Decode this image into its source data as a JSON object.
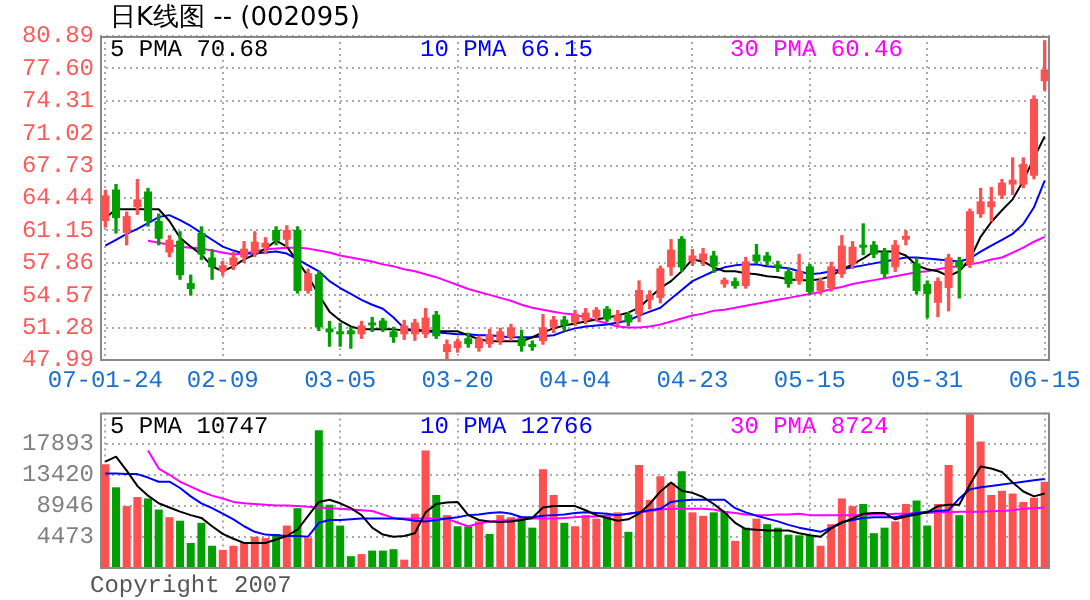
{
  "chart_data": [
    {
      "type": "candlestick",
      "title": "日K线图 -- (002095)",
      "categories": [
        "07-01-24",
        null,
        null,
        null,
        null,
        null,
        null,
        null,
        null,
        null,
        null,
        "02-09",
        null,
        null,
        null,
        null,
        null,
        null,
        null,
        null,
        null,
        null,
        "03-05",
        null,
        null,
        null,
        null,
        null,
        null,
        null,
        null,
        null,
        null,
        "03-20",
        null,
        null,
        null,
        null,
        null,
        null,
        null,
        null,
        null,
        null,
        "04-04",
        null,
        null,
        null,
        null,
        null,
        null,
        null,
        null,
        null,
        null,
        "04-23",
        null,
        null,
        null,
        null,
        null,
        null,
        null,
        null,
        null,
        null,
        "05-15",
        null,
        null,
        null,
        null,
        null,
        null,
        null,
        null,
        null,
        null,
        "05-31",
        null,
        null,
        null,
        null,
        null,
        null,
        null,
        null,
        null,
        null,
        "06-15"
      ],
      "ohlc": [
        [
          62.1,
          65.2,
          61.5,
          64.7
        ],
        [
          65.3,
          65.8,
          60.9,
          62.4
        ],
        [
          60.9,
          63.0,
          59.7,
          62.6
        ],
        [
          63.5,
          66.3,
          62.8,
          64.3
        ],
        [
          65.1,
          65.4,
          61.6,
          62.1
        ],
        [
          62.1,
          62.8,
          59.7,
          60.3
        ],
        [
          58.9,
          60.6,
          58.5,
          60.2
        ],
        [
          60.1,
          61.0,
          56.2,
          56.6
        ],
        [
          55.8,
          56.6,
          54.6,
          55.2
        ],
        [
          60.9,
          61.5,
          58.2,
          58.7
        ],
        [
          58.4,
          59.2,
          56.2,
          57.4
        ],
        [
          57.0,
          58.0,
          56.6,
          57.6
        ],
        [
          57.6,
          58.9,
          57.2,
          58.4
        ],
        [
          58.4,
          60.0,
          57.9,
          59.3
        ],
        [
          58.8,
          61.0,
          58.5,
          60.0
        ],
        [
          59.4,
          60.4,
          58.8,
          59.9
        ],
        [
          61.2,
          61.5,
          59.7,
          60.1
        ],
        [
          60.2,
          61.6,
          59.5,
          61.2
        ],
        [
          61.2,
          61.5,
          54.8,
          55.0
        ],
        [
          55.0,
          57.2,
          54.8,
          56.8
        ],
        [
          56.7,
          57.0,
          51.0,
          51.3
        ],
        [
          51.2,
          51.9,
          49.4,
          50.8
        ],
        [
          50.9,
          51.7,
          49.4,
          50.6
        ],
        [
          51.0,
          51.3,
          49.2,
          50.6
        ],
        [
          50.6,
          51.9,
          50.2,
          51.5
        ],
        [
          51.8,
          52.3,
          50.9,
          51.5
        ],
        [
          52.0,
          52.2,
          50.9,
          51.2
        ],
        [
          50.9,
          51.3,
          49.8,
          50.3
        ],
        [
          50.6,
          52.0,
          50.1,
          51.5
        ],
        [
          50.6,
          52.1,
          50.0,
          51.8
        ],
        [
          50.6,
          53.2,
          50.3,
          52.3
        ],
        [
          52.6,
          52.9,
          50.2,
          50.4
        ],
        [
          48.8,
          50.0,
          48.1,
          49.6
        ],
        [
          49.2,
          50.1,
          48.8,
          49.9
        ],
        [
          50.2,
          50.7,
          49.3,
          49.6
        ],
        [
          49.2,
          50.4,
          48.9,
          50.2
        ],
        [
          49.6,
          51.1,
          49.3,
          50.6
        ],
        [
          49.9,
          51.2,
          49.6,
          50.9
        ],
        [
          50.3,
          51.6,
          50.0,
          51.3
        ],
        [
          50.2,
          51.0,
          48.9,
          49.4
        ],
        [
          49.6,
          49.9,
          49.0,
          49.3
        ],
        [
          49.9,
          52.6,
          49.6,
          51.3
        ],
        [
          51.3,
          52.4,
          50.8,
          52.1
        ],
        [
          52.1,
          52.4,
          51.0,
          51.5
        ],
        [
          51.8,
          53.0,
          51.5,
          52.6
        ],
        [
          52.0,
          53.2,
          51.7,
          52.8
        ],
        [
          52.3,
          53.3,
          52.0,
          53.1
        ],
        [
          53.2,
          53.4,
          51.9,
          52.1
        ],
        [
          51.9,
          53.0,
          51.5,
          52.6
        ],
        [
          52.6,
          52.8,
          51.5,
          51.8
        ],
        [
          52.6,
          56.0,
          51.9,
          55.1
        ],
        [
          54.1,
          55.0,
          53.2,
          54.6
        ],
        [
          54.3,
          57.5,
          53.8,
          57.3
        ],
        [
          57.4,
          60.2,
          56.6,
          59.2
        ],
        [
          60.3,
          60.5,
          57.0,
          57.4
        ],
        [
          58.0,
          59.2,
          57.6,
          58.6
        ],
        [
          58.1,
          59.3,
          57.6,
          58.8
        ],
        [
          58.6,
          59.0,
          56.9,
          57.5
        ],
        [
          55.67,
          56.3,
          55.4,
          56.14
        ],
        [
          56.0,
          56.3,
          55.3,
          55.5
        ],
        [
          55.5,
          58.4,
          55.3,
          58.0
        ],
        [
          58.7,
          59.7,
          57.8,
          58.0
        ],
        [
          58.6,
          58.9,
          57.7,
          58.0
        ],
        [
          57.7,
          58.0,
          57.0,
          57.4
        ],
        [
          57.0,
          57.3,
          55.4,
          55.7
        ],
        [
          56.0,
          58.7,
          55.7,
          57.0
        ],
        [
          57.5,
          57.7,
          54.7,
          54.9
        ],
        [
          55.0,
          56.3,
          54.7,
          56.0
        ],
        [
          55.3,
          57.9,
          55.0,
          57.5
        ],
        [
          56.7,
          60.6,
          56.4,
          59.6
        ],
        [
          57.7,
          60.0,
          57.3,
          59.5
        ],
        [
          59.7,
          61.8,
          58.7,
          59.4
        ],
        [
          59.7,
          60.0,
          58.4,
          58.7
        ],
        [
          59.0,
          59.3,
          56.4,
          56.7
        ],
        [
          57.4,
          60.1,
          57.0,
          59.7
        ],
        [
          60.2,
          61.1,
          59.7,
          60.6
        ],
        [
          57.8,
          58.3,
          54.7,
          55.0
        ],
        [
          55.7,
          56.0,
          52.3,
          54.7
        ],
        [
          53.8,
          56.3,
          52.4,
          56.0
        ],
        [
          55.3,
          58.7,
          53.0,
          58.4
        ],
        [
          58.0,
          58.4,
          54.3,
          57.4
        ],
        [
          57.7,
          63.3,
          57.4,
          63.1
        ],
        [
          62.8,
          65.4,
          62.5,
          64.1
        ],
        [
          63.5,
          65.5,
          62.1,
          64.1
        ],
        [
          64.7,
          66.3,
          64.4,
          66.0
        ],
        [
          65.8,
          68.5,
          64.8,
          66.3
        ],
        [
          65.8,
          68.5,
          65.5,
          67.9
        ],
        [
          66.7,
          74.8,
          66.4,
          74.5
        ],
        [
          76.3,
          80.4,
          75.4,
          77.5
        ]
      ],
      "colors": [
        "#ff5050",
        "#00a000",
        "#ff5050",
        "#ff5050",
        "#00a000",
        "#00a000",
        "#ff5050",
        "#00a000",
        "#00a000",
        "#00a000",
        "#00a000",
        "#ff5050",
        "#ff5050",
        "#ff5050",
        "#ff5050",
        "#ff5050",
        "#00a000",
        "#ff5050",
        "#00a000",
        "#ff5050",
        "#00a000",
        "#00a000",
        "#00a000",
        "#00a000",
        "#ff5050",
        "#00a000",
        "#00a000",
        "#00a000",
        "#ff5050",
        "#ff5050",
        "#ff5050",
        "#00a000",
        "#ff5050",
        "#ff5050",
        "#00a000",
        "#ff5050",
        "#ff5050",
        "#ff5050",
        "#ff5050",
        "#00a000",
        "#00a000",
        "#ff5050",
        "#ff5050",
        "#00a000",
        "#ff5050",
        "#ff5050",
        "#ff5050",
        "#00a000",
        "#ff5050",
        "#00a000",
        "#ff5050",
        "#ff5050",
        "#ff5050",
        "#ff5050",
        "#00a000",
        "#ff5050",
        "#ff5050",
        "#00a000",
        "#ff5050",
        "#00a000",
        "#ff5050",
        "#00a000",
        "#00a000",
        "#00a000",
        "#00a000",
        "#ff5050",
        "#00a000",
        "#ff5050",
        "#ff5050",
        "#ff5050",
        "#ff5050",
        "#00a000",
        "#00a000",
        "#00a000",
        "#ff5050",
        "#ff5050",
        "#00a000",
        "#00a000",
        "#ff5050",
        "#ff5050",
        "#00a000",
        "#ff5050",
        "#ff5050",
        "#ff5050",
        "#ff5050",
        "#ff5050",
        "#ff5050",
        "#ff5050",
        "#ff5050"
      ],
      "series": [
        {
          "name": "5 PMA 70.68",
          "type": "line",
          "color": "#000000",
          "values": [
            62.4,
            63.3,
            63.3,
            63.3,
            63.3,
            63.3,
            62.1,
            60.4,
            59.5,
            58.7,
            57.5,
            57.0,
            57.5,
            58.2,
            58.7,
            59.3,
            60.1,
            59.5,
            58.0,
            56.5,
            54.6,
            52.9,
            52.0,
            51.4,
            51.1,
            51.1,
            51.1,
            51.1,
            51.0,
            51.0,
            51.0,
            50.9,
            50.9,
            50.9,
            50.5,
            50.1,
            49.9,
            49.9,
            49.9,
            49.9,
            50.3,
            50.8,
            51.2,
            51.5,
            51.7,
            51.9,
            52.1,
            52.3,
            52.5,
            52.8,
            53.3,
            54.3,
            55.3,
            56.0,
            57.0,
            58.2,
            58.0,
            57.4,
            57.0,
            57.0,
            56.8,
            56.7,
            56.5,
            56.4,
            56.2,
            56.1,
            56.1,
            56.2,
            56.5,
            57.2,
            57.7,
            58.3,
            59.0,
            59.0,
            59.0,
            58.6,
            57.6,
            57.2,
            57.0,
            56.5,
            57.0,
            58.2,
            60.5,
            62.0,
            63.2,
            64.3,
            66.2,
            68.5,
            70.7
          ]
        },
        {
          "name": "10 PMA 66.15",
          "type": "line",
          "color": "#0000ff",
          "values": [
            59.6,
            60.2,
            60.8,
            61.3,
            61.9,
            62.5,
            62.7,
            62.2,
            61.6,
            60.9,
            60.2,
            59.5,
            59.1,
            58.8,
            58.8,
            58.9,
            59.0,
            58.8,
            58.2,
            57.6,
            57.0,
            56.0,
            55.3,
            54.7,
            54.1,
            53.6,
            53.2,
            52.3,
            51.2,
            51.0,
            50.9,
            50.8,
            50.7,
            50.6,
            50.6,
            50.5,
            50.5,
            50.4,
            50.3,
            50.3,
            50.3,
            50.4,
            50.5,
            50.9,
            51.2,
            51.4,
            51.5,
            51.6,
            51.8,
            52.0,
            52.5,
            52.9,
            53.3,
            54.2,
            55.1,
            56.0,
            56.5,
            57.0,
            57.4,
            57.6,
            57.7,
            57.7,
            57.5,
            57.4,
            57.3,
            57.0,
            56.7,
            56.8,
            57.0,
            57.2,
            57.4,
            57.6,
            57.8,
            58.0,
            58.2,
            58.4,
            58.4,
            58.3,
            58.2,
            58.1,
            58.0,
            58.3,
            59.0,
            59.6,
            60.2,
            60.8,
            61.8,
            63.5,
            66.2
          ]
        },
        {
          "name": "30 PMA 60.46",
          "type": "line",
          "color": "#ff00ff",
          "values": [
            null,
            null,
            null,
            null,
            60.1,
            59.9,
            59.7,
            59.5,
            59.4,
            59.3,
            59.1,
            58.9,
            58.7,
            58.8,
            59.0,
            59.2,
            59.3,
            59.4,
            59.4,
            59.3,
            59.1,
            58.9,
            58.6,
            58.4,
            58.2,
            58.0,
            57.7,
            57.5,
            57.2,
            57.0,
            56.7,
            56.4,
            56.0,
            55.6,
            55.2,
            54.9,
            54.6,
            54.3,
            54.0,
            53.6,
            53.3,
            53.1,
            52.9,
            52.7,
            52.6,
            52.3,
            52.0,
            51.7,
            51.4,
            51.3,
            51.3,
            51.4,
            51.6,
            51.9,
            52.2,
            52.5,
            52.7,
            53.0,
            53.1,
            53.3,
            53.5,
            53.7,
            53.9,
            54.1,
            54.3,
            54.5,
            54.7,
            54.9,
            55.2,
            55.4,
            55.7,
            55.9,
            56.1,
            56.3,
            56.5,
            56.7,
            56.9,
            57.0,
            57.2,
            57.4,
            57.5,
            57.7,
            57.9,
            58.2,
            58.4,
            58.9,
            59.4,
            60.0,
            60.5
          ]
        }
      ],
      "ylim": [
        47.99,
        80.89
      ],
      "yticks": [
        47.99,
        51.28,
        54.57,
        57.86,
        61.15,
        64.44,
        67.73,
        71.02,
        74.31,
        {
          "value": 77.6,
          "label": "77.60"
        },
        80.89
      ],
      "grid": true,
      "legend": "top",
      "marker": "none"
    },
    {
      "type": "bar",
      "categories": [
        null,
        null,
        null,
        null,
        null,
        null,
        null,
        null,
        null,
        null,
        null,
        null,
        null,
        null,
        null,
        null,
        null,
        null,
        null,
        null,
        null,
        null,
        null,
        null,
        null,
        null,
        null,
        null,
        null,
        null,
        null,
        null,
        null,
        null,
        null,
        null,
        null,
        null,
        null,
        null,
        null,
        null,
        null,
        null,
        null,
        null,
        null,
        null,
        null,
        null,
        null,
        null,
        null,
        null,
        null,
        null,
        null,
        null,
        null,
        null,
        null,
        null,
        null,
        null,
        null,
        null,
        null,
        null,
        null,
        null,
        null,
        null,
        null,
        null,
        null,
        null,
        null,
        null,
        null,
        null,
        null,
        null,
        null,
        null,
        null,
        null,
        null,
        null,
        null
      ],
      "series": [
        {
          "type": "bar",
          "values": [
            14900,
            11600,
            8900,
            10200,
            10000,
            8400,
            7300,
            6800,
            3600,
            6500,
            3200,
            2600,
            3200,
            3600,
            4500,
            4300,
            4900,
            6100,
            8600,
            4300,
            19800,
            9100,
            6100,
            1700,
            2000,
            2500,
            2500,
            2700,
            1200,
            7800,
            16900,
            10500,
            7600,
            6000,
            6000,
            6700,
            4900,
            7600,
            7300,
            7300,
            5800,
            14200,
            10500,
            6500,
            6000,
            7600,
            7100,
            7400,
            8000,
            5200,
            14800,
            9800,
            13200,
            12200,
            13900,
            8000,
            7500,
            8000,
            8200,
            3900,
            5800,
            7100,
            6300,
            5800,
            4800,
            4700,
            4700,
            3200,
            6300,
            10000,
            8900,
            9200,
            5000,
            5800,
            6700,
            9200,
            9700,
            6100,
            9200,
            14800,
            7600,
            22100,
            18200,
            10500,
            11100,
            10700,
            9500,
            10100,
            12400
          ],
          "colors": [
            "#ff5050",
            "#00a000",
            "#ff5050",
            "#ff5050",
            "#00a000",
            "#00a000",
            "#ff5050",
            "#00a000",
            "#00a000",
            "#00a000",
            "#00a000",
            "#ff5050",
            "#ff5050",
            "#ff5050",
            "#ff5050",
            "#ff5050",
            "#00a000",
            "#ff5050",
            "#00a000",
            "#ff5050",
            "#00a000",
            "#00a000",
            "#00a000",
            "#00a000",
            "#ff5050",
            "#00a000",
            "#00a000",
            "#00a000",
            "#ff5050",
            "#ff5050",
            "#ff5050",
            "#00a000",
            "#ff5050",
            "#00a000",
            "#00a000",
            "#ff5050",
            "#00a000",
            "#ff5050",
            "#ff5050",
            "#00a000",
            "#00a000",
            "#ff5050",
            "#ff5050",
            "#00a000",
            "#ff5050",
            "#ff5050",
            "#ff5050",
            "#00a000",
            "#ff5050",
            "#00a000",
            "#ff5050",
            "#ff5050",
            "#ff5050",
            "#ff5050",
            "#00a000",
            "#ff5050",
            "#ff5050",
            "#00a000",
            "#00a000",
            "#ff5050",
            "#00a000",
            "#ff5050",
            "#00a000",
            "#00a000",
            "#00a000",
            "#00a000",
            "#00a000",
            "#ff5050",
            "#ff5050",
            "#ff5050",
            "#ff5050",
            "#00a000",
            "#00a000",
            "#00a000",
            "#ff5050",
            "#ff5050",
            "#00a000",
            "#00a000",
            "#ff5050",
            "#ff5050",
            "#00a000",
            "#ff5050",
            "#ff5050",
            "#ff5050",
            "#ff5050",
            "#ff5050",
            "#ff5050",
            "#ff5050",
            "#ff5050"
          ]
        },
        {
          "name": "5 PMA 10747",
          "type": "line",
          "color": "#000000",
          "values": [
            15300,
            16000,
            14000,
            11800,
            10400,
            9300,
            8700,
            8100,
            7600,
            7200,
            6000,
            4900,
            4200,
            3600,
            3600,
            3600,
            4100,
            4600,
            5500,
            7500,
            9500,
            9800,
            9300,
            8600,
            7600,
            5800,
            4800,
            4500,
            4600,
            5000,
            8000,
            9200,
            9400,
            9500,
            7600,
            6900,
            6700,
            6600,
            6700,
            6900,
            7200,
            8700,
            8900,
            8900,
            8900,
            8300,
            7600,
            7200,
            6800,
            7000,
            7800,
            9200,
            11000,
            12300,
            11100,
            10800,
            10200,
            9200,
            8000,
            6500,
            5600,
            5500,
            5400,
            5400,
            5400,
            5000,
            4700,
            4500,
            5700,
            6500,
            7100,
            7800,
            7900,
            7900,
            7000,
            7400,
            7700,
            8000,
            8900,
            9100,
            9100,
            12000,
            14600,
            14300,
            13800,
            12300,
            11000,
            10300,
            10700
          ]
        },
        {
          "name": "10 PMA 12766",
          "type": "line",
          "color": "#0000ff",
          "values": [
            13600,
            13600,
            13500,
            13500,
            13000,
            12400,
            12400,
            11500,
            10300,
            9300,
            8600,
            7800,
            7000,
            6000,
            5200,
            4800,
            4700,
            4600,
            4600,
            4500,
            6500,
            6900,
            6900,
            7000,
            7100,
            7100,
            7100,
            7100,
            7000,
            6800,
            6700,
            6900,
            7100,
            7300,
            7600,
            7700,
            7900,
            8000,
            7800,
            7300,
            7300,
            7500,
            7600,
            7700,
            7900,
            8000,
            7900,
            7800,
            7600,
            7800,
            8000,
            8300,
            8500,
            9500,
            9700,
            9800,
            9800,
            9800,
            9800,
            8600,
            8000,
            7500,
            7100,
            6700,
            6200,
            5800,
            5500,
            5200,
            5800,
            6600,
            6900,
            7200,
            7300,
            7300,
            7300,
            7600,
            7900,
            8100,
            8200,
            8300,
            10000,
            11300,
            11600,
            11800,
            12000,
            12200,
            12400,
            12600,
            12800
          ]
        },
        {
          "name": "30 PMA 8724",
          "type": "line",
          "color": "#ff00ff",
          "values": [
            null,
            null,
            null,
            null,
            16900,
            14300,
            13400,
            12400,
            11700,
            11000,
            10400,
            10000,
            9500,
            9300,
            9200,
            9100,
            9000,
            9000,
            8900,
            8800,
            8700,
            8600,
            8500,
            8400,
            8300,
            8200,
            7700,
            7200,
            7100,
            7100,
            7100,
            7100,
            7100,
            6500,
            6000,
            6400,
            6700,
            6800,
            6900,
            7000,
            7100,
            7100,
            7100,
            7200,
            7300,
            7400,
            7400,
            7500,
            7600,
            7800,
            8000,
            8200,
            8400,
            8500,
            8500,
            8500,
            8500,
            8400,
            8100,
            7900,
            7700,
            7600,
            7600,
            7700,
            7700,
            7800,
            7600,
            7600,
            7600,
            7600,
            7600,
            7600,
            7700,
            7700,
            7800,
            7800,
            7900,
            7900,
            8000,
            8000,
            8100,
            8100,
            8100,
            8200,
            8200,
            8300,
            8500,
            8600,
            8700
          ]
        }
      ],
      "ylim": [
        0,
        22366
      ],
      "yticks": [
        4473,
        8946,
        13420,
        17893
      ],
      "grid": true,
      "legend": "top",
      "marker": "none",
      "tick_labels": "y",
      "annotations": [
        "Copyright 2007"
      ]
    }
  ]
}
